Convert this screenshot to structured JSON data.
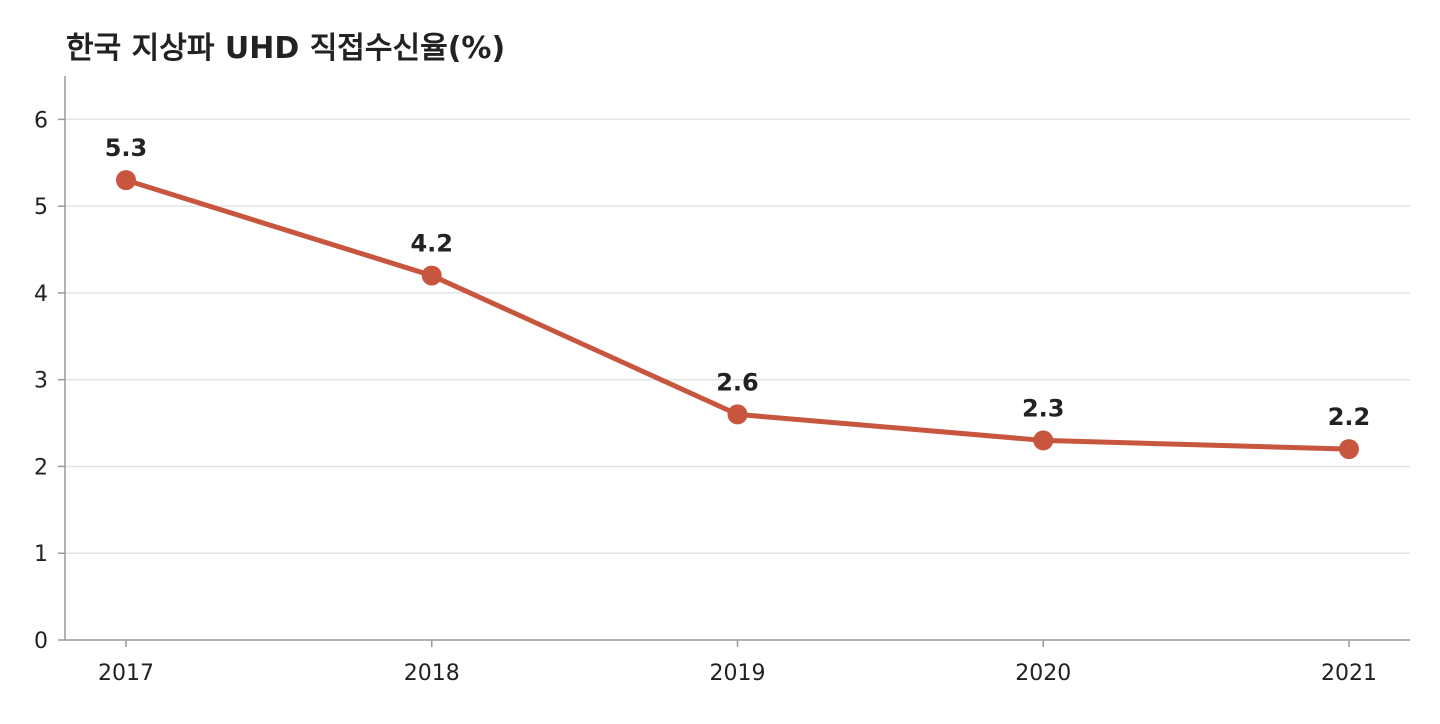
{
  "chart_data": {
    "type": "line",
    "title": "한국 지상파 UHD 직접수신율(%)",
    "xlabel": "",
    "ylabel": "",
    "categories": [
      "2017",
      "2018",
      "2019",
      "2020",
      "2021"
    ],
    "series": [
      {
        "values": [
          5.3,
          4.2,
          2.6,
          2.3,
          2.2
        ],
        "labels": [
          "5.3",
          "4.2",
          "2.6",
          "2.3",
          "2.2"
        ],
        "color": "#c8553d"
      }
    ],
    "ylim": [
      0,
      6.5
    ],
    "yticks": [
      "0",
      "1",
      "2",
      "3",
      "4",
      "5",
      "6"
    ],
    "grid": true,
    "legend": "none"
  }
}
